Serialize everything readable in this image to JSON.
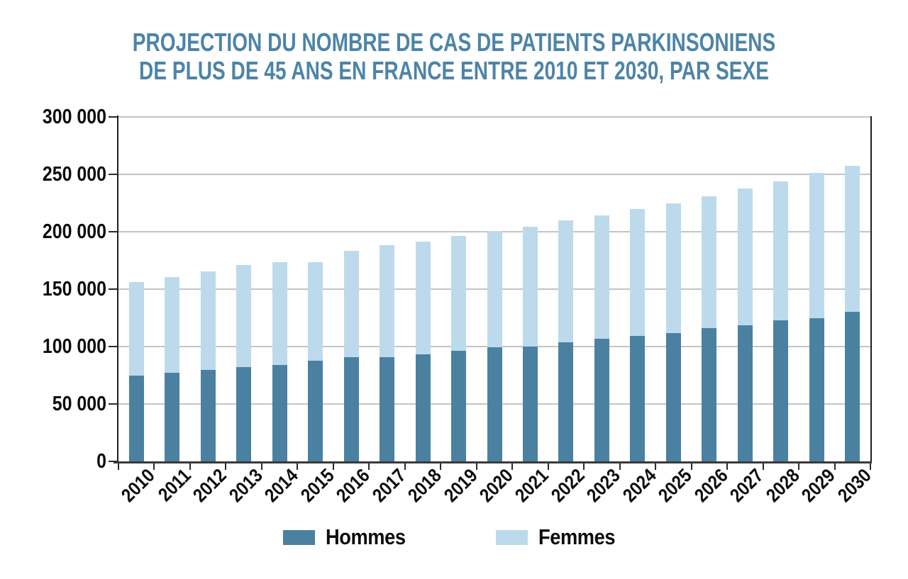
{
  "title": {
    "line1": "PROJECTION DU NOMBRE DE CAS DE PATIENTS PARKINSONIENS",
    "line2": "DE PLUS DE 45 ANS EN FRANCE ENTRE 2010 ET 2030, PAR SEXE"
  },
  "colors": {
    "title_text": "#4d84a8",
    "hommes_bar": "#4b81a0",
    "femmes_bar": "#bcdaec",
    "gridline": "#c4c4c4",
    "axis": "#1f1f1f",
    "tick_label": "#0d0d0d"
  },
  "chart_data": {
    "type": "bar",
    "stacked": true,
    "title": "PROJECTION DU NOMBRE DE CAS DE PATIENTS PARKINSONIENS DE PLUS DE 45 ANS EN FRANCE ENTRE 2010 ET 2030, PAR SEXE",
    "categories": [
      "2010",
      "2011",
      "2012",
      "2013",
      "2014",
      "2015",
      "2016",
      "2017",
      "2018",
      "2019",
      "2020",
      "2021",
      "2022",
      "2023",
      "2024",
      "2025",
      "2026",
      "2027",
      "2028",
      "2029",
      "2030"
    ],
    "series": [
      {
        "name": "Hommes",
        "color": "#4b81a0",
        "values": [
          75000,
          77000,
          79500,
          82000,
          84000,
          87500,
          90500,
          90500,
          93500,
          96000,
          99500,
          100000,
          104000,
          106500,
          109500,
          111500,
          116000,
          118500,
          123000,
          125000,
          130000
        ]
      },
      {
        "name": "Femmes",
        "color": "#bcdaec",
        "values": [
          81000,
          83500,
          86000,
          89000,
          89500,
          86000,
          93000,
          97500,
          98000,
          100500,
          101000,
          104500,
          106000,
          107500,
          110000,
          113000,
          115000,
          119000,
          121000,
          126000,
          127500
        ]
      }
    ],
    "totals": [
      156000,
      160500,
      165500,
      171000,
      173500,
      173500,
      183500,
      188000,
      191500,
      196500,
      200500,
      204500,
      210000,
      214000,
      219500,
      224500,
      231000,
      237500,
      244000,
      251000,
      257500
    ],
    "xlabel": "",
    "ylabel": "",
    "ylim": [
      0,
      300000
    ],
    "yticks": [
      0,
      50000,
      100000,
      150000,
      200000,
      250000,
      300000
    ],
    "ytick_labels": [
      "0",
      "50 000",
      "100 000",
      "150 000",
      "200 000",
      "250 000",
      "300 000"
    ],
    "grid": "horizontal",
    "legend_position": "bottom"
  }
}
